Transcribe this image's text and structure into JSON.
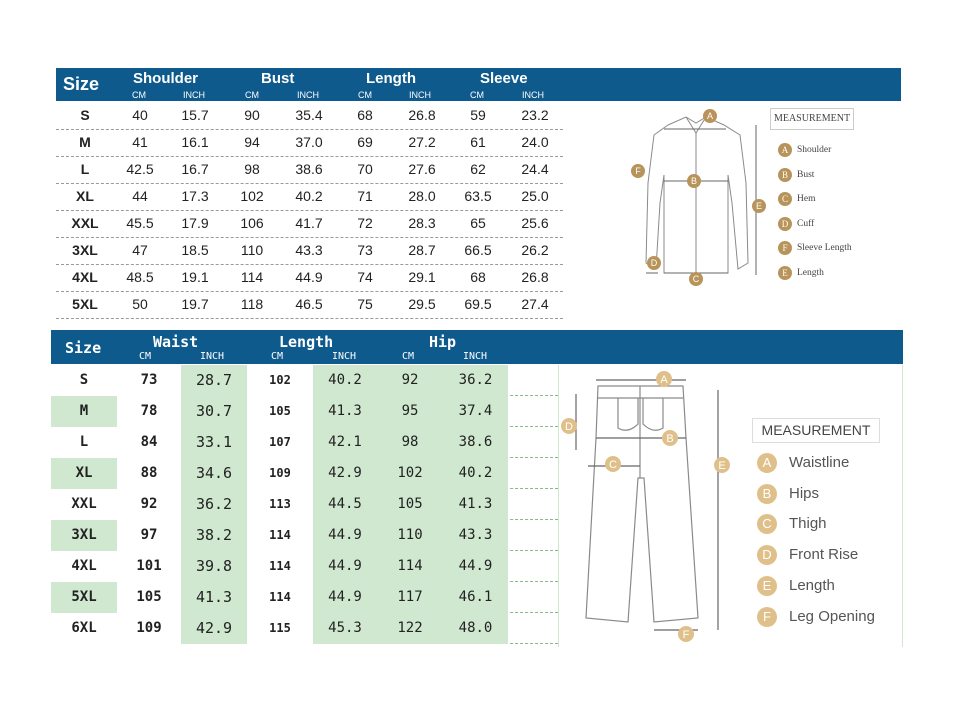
{
  "shirt_chart": {
    "header": {
      "size": "Size",
      "groups": [
        "Shoulder",
        "Bust",
        "Length",
        "Sleeve"
      ],
      "units": [
        "CM",
        "INCH",
        "CM",
        "INCH",
        "CM",
        "INCH",
        "CM",
        "INCH"
      ]
    },
    "rows": [
      [
        "S",
        "40",
        "15.7",
        "90",
        "35.4",
        "68",
        "26.8",
        "59",
        "23.2"
      ],
      [
        "M",
        "41",
        "16.1",
        "94",
        "37.0",
        "69",
        "27.2",
        "61",
        "24.0"
      ],
      [
        "L",
        "42.5",
        "16.7",
        "98",
        "38.6",
        "70",
        "27.6",
        "62",
        "24.4"
      ],
      [
        "XL",
        "44",
        "17.3",
        "102",
        "40.2",
        "71",
        "28.0",
        "63.5",
        "25.0"
      ],
      [
        "XXL",
        "45.5",
        "17.9",
        "106",
        "41.7",
        "72",
        "28.3",
        "65",
        "25.6"
      ],
      [
        "3XL",
        "47",
        "18.5",
        "110",
        "43.3",
        "73",
        "28.7",
        "66.5",
        "26.2"
      ],
      [
        "4XL",
        "48.5",
        "19.1",
        "114",
        "44.9",
        "74",
        "29.1",
        "68",
        "26.8"
      ],
      [
        "5XL",
        "50",
        "19.7",
        "118",
        "46.5",
        "75",
        "29.5",
        "69.5",
        "27.4"
      ]
    ],
    "legend": {
      "title": "MEASUREMENT",
      "items": [
        {
          "badge": "A",
          "label": "Shoulder"
        },
        {
          "badge": "B",
          "label": "Bust"
        },
        {
          "badge": "C",
          "label": "Hem"
        },
        {
          "badge": "D",
          "label": "Cuff"
        },
        {
          "badge": "F",
          "label": "Sleeve Length"
        },
        {
          "badge": "E",
          "label": "Length"
        }
      ]
    },
    "diagram_labels": [
      "A",
      "B",
      "C",
      "D",
      "E",
      "F"
    ]
  },
  "pants_chart": {
    "header": {
      "size": "Size",
      "groups": [
        "Waist",
        "Length",
        "Hip"
      ],
      "units": [
        "CM",
        "INCH",
        "CM",
        "INCH",
        "CM",
        "INCH"
      ]
    },
    "rows": [
      [
        "S",
        "73",
        "28.7",
        "102",
        "40.2",
        "92",
        "36.2"
      ],
      [
        "M",
        "78",
        "30.7",
        "105",
        "41.3",
        "95",
        "37.4"
      ],
      [
        "L",
        "84",
        "33.1",
        "107",
        "42.1",
        "98",
        "38.6"
      ],
      [
        "XL",
        "88",
        "34.6",
        "109",
        "42.9",
        "102",
        "40.2"
      ],
      [
        "XXL",
        "92",
        "36.2",
        "113",
        "44.5",
        "105",
        "41.3"
      ],
      [
        "3XL",
        "97",
        "38.2",
        "114",
        "44.9",
        "110",
        "43.3"
      ],
      [
        "4XL",
        "101",
        "39.8",
        "114",
        "44.9",
        "114",
        "44.9"
      ],
      [
        "5XL",
        "105",
        "41.3",
        "114",
        "44.9",
        "117",
        "46.1"
      ],
      [
        "6XL",
        "109",
        "42.9",
        "115",
        "45.3",
        "122",
        "48.0"
      ]
    ],
    "legend": {
      "title": "MEASUREMENT",
      "items": [
        {
          "badge": "A",
          "label": "Waistline"
        },
        {
          "badge": "B",
          "label": "Hips"
        },
        {
          "badge": "C",
          "label": "Thigh"
        },
        {
          "badge": "D",
          "label": "Front Rise"
        },
        {
          "badge": "E",
          "label": "Length"
        },
        {
          "badge": "F",
          "label": "Leg Opening"
        }
      ]
    },
    "diagram_labels": [
      "A",
      "B",
      "C",
      "D",
      "E",
      "F"
    ]
  },
  "colors": {
    "header_bg": "#0f5a8c",
    "zebra_green": "#cfe8cf",
    "badge_dark": "#b8935a",
    "badge_light": "#e0c08a"
  }
}
